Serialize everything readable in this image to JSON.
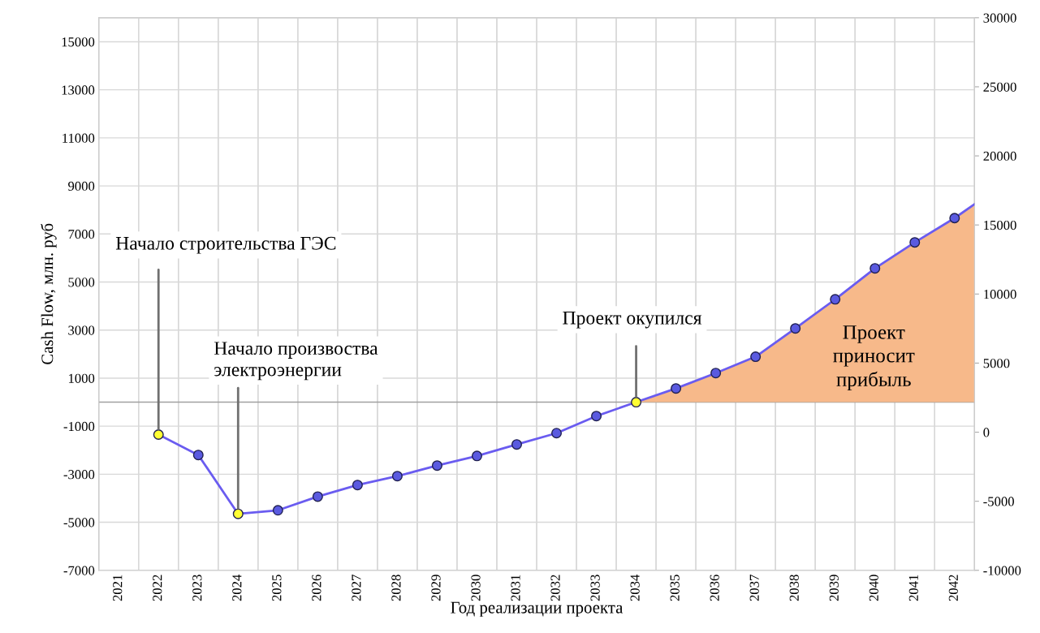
{
  "chart_data": {
    "type": "line",
    "xlabel": "Год реализации проекта",
    "ylabel": "Cash Flow, млн. руб",
    "xlim": [
      2020.5,
      2042.5
    ],
    "xticks": [
      2021,
      2022,
      2023,
      2024,
      2025,
      2026,
      2027,
      2028,
      2029,
      2030,
      2031,
      2032,
      2033,
      2034,
      2035,
      2036,
      2037,
      2038,
      2039,
      2040,
      2041,
      2042
    ],
    "ylim": [
      -7000,
      16000
    ],
    "yticks": [
      -7000,
      -5000,
      -3000,
      -1000,
      1000,
      3000,
      5000,
      7000,
      9000,
      11000,
      13000,
      15000
    ],
    "y2lim": [
      -10000,
      30000
    ],
    "y2ticks": [
      -10000,
      -5000,
      0,
      5000,
      10000,
      15000,
      20000,
      25000,
      30000
    ],
    "grid": true,
    "legend": false,
    "marker": "circle",
    "line_style": "solid",
    "series": [
      {
        "type": "area",
        "marker": "none",
        "color": "#f7b98a",
        "x": [
          2034,
          2035,
          2036,
          2037,
          2038,
          2039,
          2040,
          2041,
          2042,
          2042.5
        ],
        "values": [
          0,
          570,
          1210,
          1890,
          3070,
          4280,
          5570,
          6650,
          7660,
          8240
        ]
      },
      {
        "color": "#6a5cf0",
        "x": [
          2022,
          2023,
          2024,
          2025,
          2026,
          2027,
          2028,
          2029,
          2030,
          2031,
          2032,
          2033,
          2034,
          2035,
          2036,
          2037,
          2038,
          2039,
          2040,
          2041,
          2042,
          2042.5
        ],
        "values": [
          -1350,
          -2200,
          -4650,
          -4500,
          -3930,
          -3450,
          -3080,
          -2640,
          -2240,
          -1760,
          -1290,
          -580,
          0,
          570,
          1210,
          1890,
          3070,
          4280,
          5570,
          6650,
          7660,
          8240
        ],
        "colors": [
          "#ffff33",
          "#5a5ae0",
          "#ffff33",
          "#5a5ae0",
          "#5a5ae0",
          "#5a5ae0",
          "#5a5ae0",
          "#5a5ae0",
          "#5a5ae0",
          "#5a5ae0",
          "#5a5ae0",
          "#5a5ae0",
          "#ffff33",
          "#5a5ae0",
          "#5a5ae0",
          "#5a5ae0",
          "#5a5ae0",
          "#5a5ae0",
          "#5a5ae0",
          "#5a5ae0",
          "#5a5ae0",
          null
        ]
      }
    ],
    "ref_lines": [
      {
        "axis": "y",
        "value": 0,
        "color": "#a0a0a0"
      }
    ],
    "annotations": [
      {
        "text": "Начало строительства ГЭС",
        "x": 2022,
        "y": -1350
      },
      {
        "text": "Начало произвоства\nэлектроэнергии",
        "x": 2024,
        "y": -4650
      },
      {
        "text": "Проект окупился",
        "x": 2034,
        "y": 0
      },
      "Проект\nприносит\nприбыль"
    ]
  }
}
